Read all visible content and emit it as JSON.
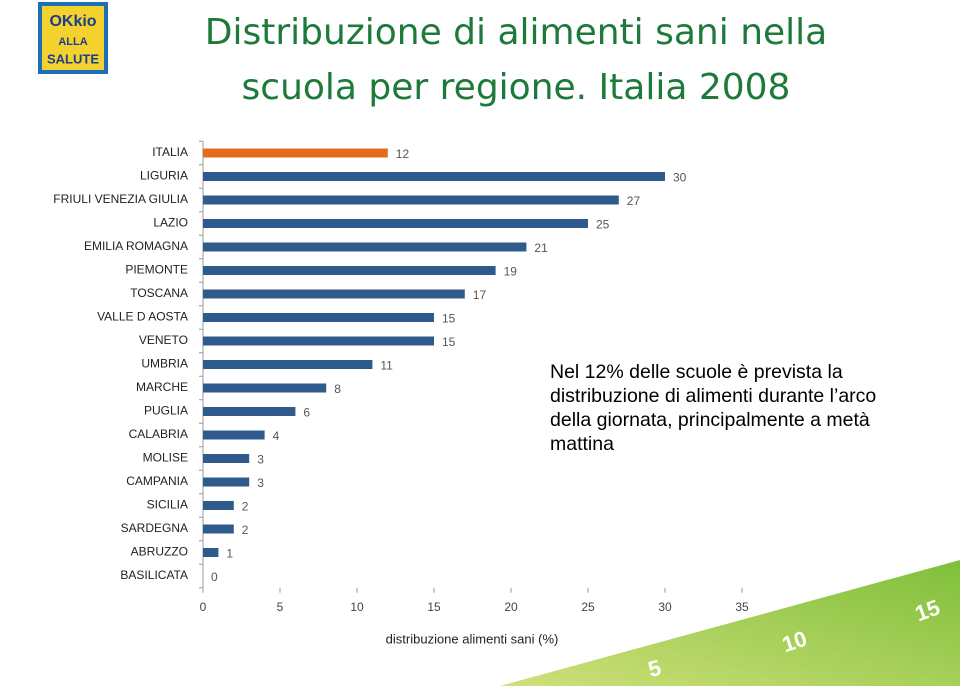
{
  "logo": [
    "OKkio",
    "ALLA",
    "SALUTE"
  ],
  "ruler_labels": [
    "5",
    "10",
    "15"
  ],
  "note": "Nel 12% delle scuole è prevista la distribuzione di alimenti durante l’arco della giornata, principalmente a metà mattina",
  "chart_data": {
    "type": "hbar",
    "title": [
      "Distribuzione di alimenti sani nella",
      "scuola per regione. Italia 2008"
    ],
    "x_label": "distribuzione alimenti sani (%)",
    "categories": [
      "ITALIA",
      "LIGURIA",
      "FRIULI VENEZIA GIULIA",
      "LAZIO",
      "EMILIA ROMAGNA",
      "PIEMONTE",
      "TOSCANA",
      "VALLE D AOSTA",
      "VENETO",
      "UMBRIA",
      "MARCHE",
      "PUGLIA",
      "CALABRIA",
      "MOLISE",
      "CAMPANIA",
      "SICILIA",
      "SARDEGNA",
      "ABRUZZO",
      "BASILICATA"
    ],
    "values": [
      12,
      30,
      27,
      25,
      21,
      19,
      17,
      15,
      15,
      11,
      8,
      6,
      4,
      3,
      3,
      2,
      2,
      1,
      0
    ],
    "colors": [
      "#e36c1c",
      "#2f5b8c",
      "#2f5b8c",
      "#2f5b8c",
      "#2f5b8c",
      "#2f5b8c",
      "#2f5b8c",
      "#2f5b8c",
      "#2f5b8c",
      "#2f5b8c",
      "#2f5b8c",
      "#2f5b8c",
      "#2f5b8c",
      "#2f5b8c",
      "#2f5b8c",
      "#2f5b8c",
      "#2f5b8c",
      "#2f5b8c",
      "#2f5b8c"
    ],
    "xlim": [
      0,
      35
    ],
    "xticks": [
      0,
      5,
      10,
      15,
      20,
      25,
      30,
      35
    ]
  }
}
